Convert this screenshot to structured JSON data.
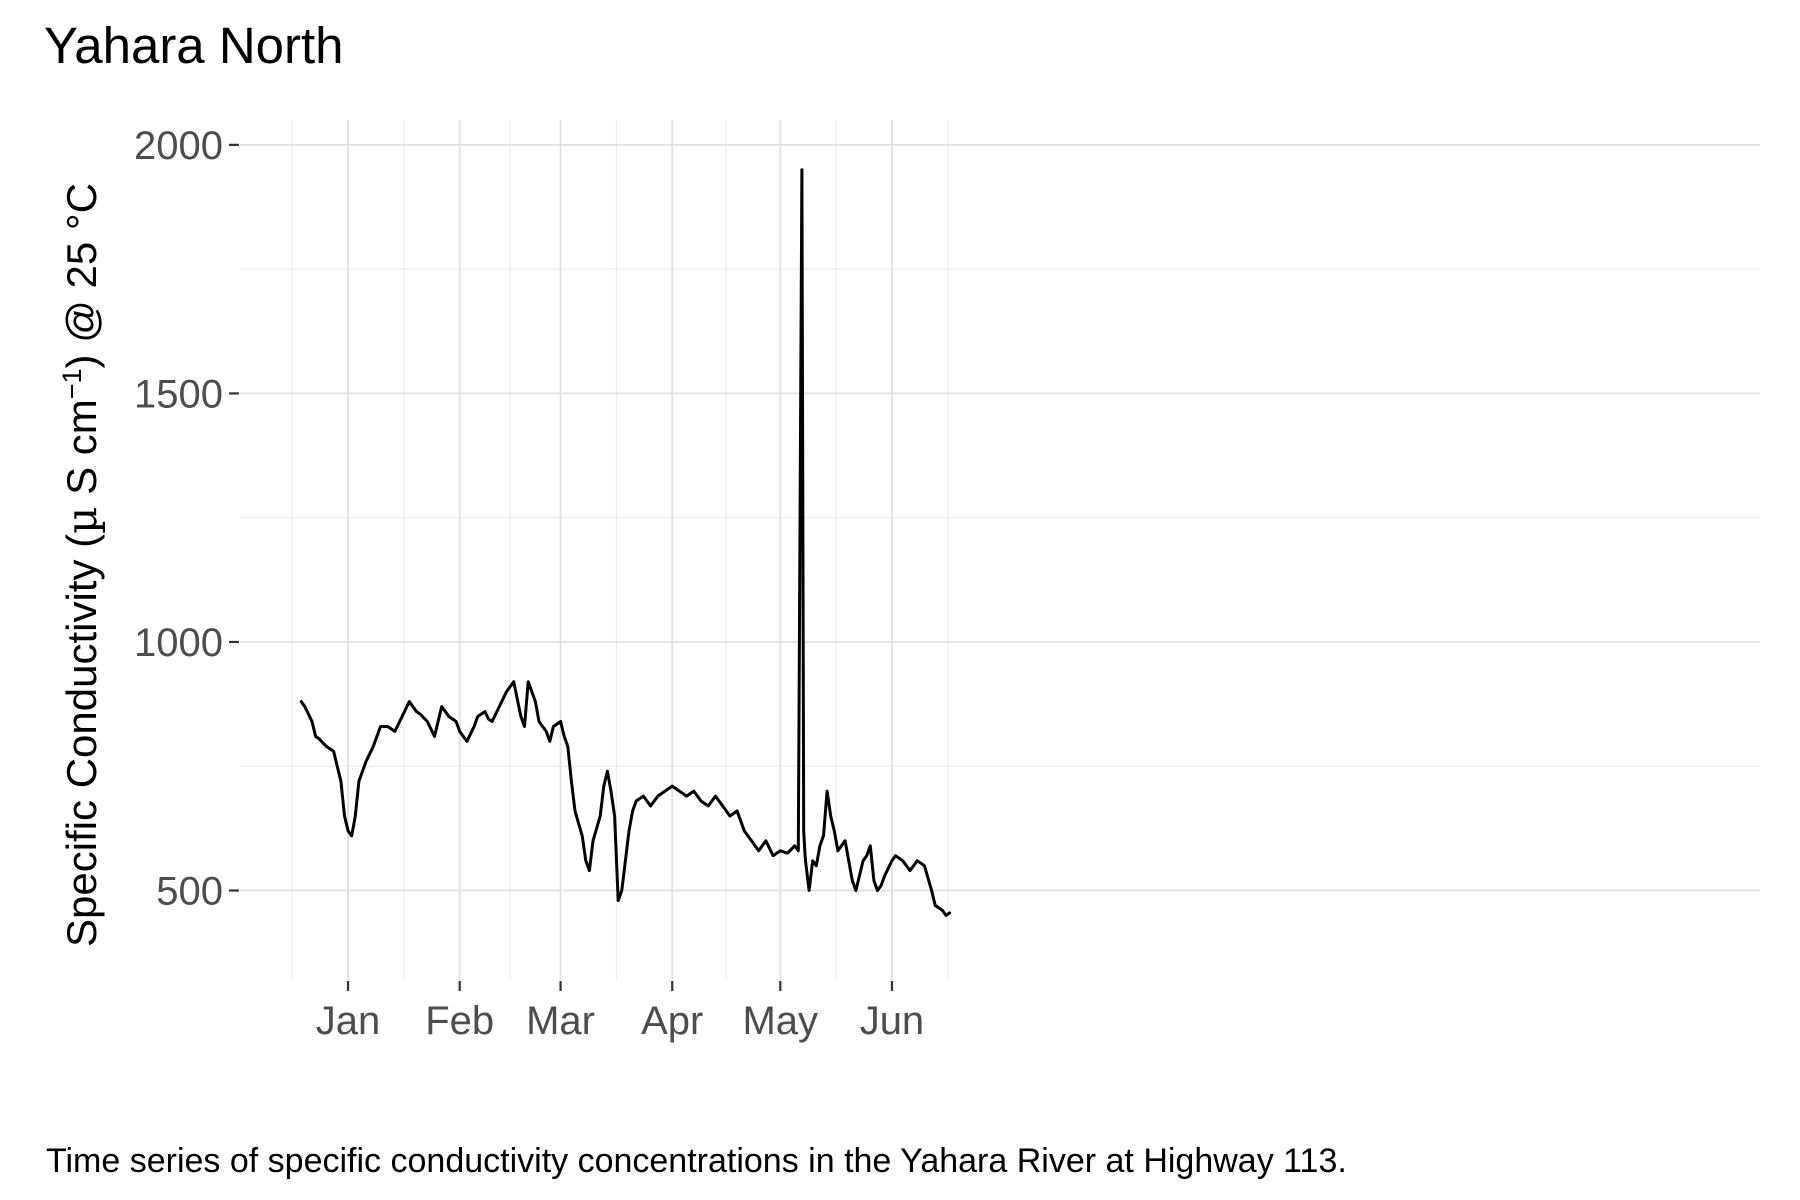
{
  "chart_data": {
    "type": "line",
    "title": "Yahara North",
    "ylabel_parts": {
      "pre": "Specific Conductivity (",
      "mu": "µ",
      "mid": " S cm",
      "sup": "−1",
      "post": ") @ 25 °C"
    },
    "xlabel": "",
    "caption": "Time series of specific conductivity concentrations in the Yahara River at Highway 113.",
    "ylim": [
      320,
      2050
    ],
    "y_ticks": [
      500,
      1000,
      1500,
      2000
    ],
    "y_tick_labels": [
      "500",
      "1000",
      "1500",
      "2000"
    ],
    "x_range_days": [
      -30,
      392
    ],
    "x_ticks": [
      {
        "day": 0,
        "label": "Jan"
      },
      {
        "day": 31,
        "label": "Feb"
      },
      {
        "day": 59,
        "label": "Mar"
      },
      {
        "day": 90,
        "label": "Apr"
      },
      {
        "day": 120,
        "label": "May"
      },
      {
        "day": 151,
        "label": "Jun"
      }
    ],
    "x_minor_ticks": [
      -15.5,
      15.5,
      45,
      74.5,
      105,
      135.5,
      166.5
    ],
    "grid": true,
    "series": [
      {
        "color": "#000000",
        "x": [
          -13,
          -12,
          -11,
          -10,
          -9,
          -8,
          -6,
          -4,
          -2,
          -1,
          0,
          1,
          2,
          3,
          5,
          7,
          9,
          11,
          13,
          15,
          17,
          18,
          19,
          20,
          22,
          24,
          26,
          28,
          30,
          31,
          33,
          35,
          36,
          38,
          39,
          40,
          42,
          44,
          46,
          48,
          49,
          50,
          52,
          53,
          54,
          55,
          56,
          57,
          59,
          60,
          61,
          62,
          63,
          65,
          66,
          67,
          68,
          70,
          71,
          72,
          73,
          74,
          75,
          76,
          77,
          78,
          79,
          80,
          82,
          84,
          86,
          88,
          90,
          92,
          94,
          96,
          98,
          100,
          102,
          104,
          106,
          108,
          110,
          112,
          114,
          116,
          118,
          120,
          122,
          124,
          125,
          126,
          126.5,
          126.8,
          127,
          128,
          129,
          130,
          131,
          132,
          133,
          134,
          135,
          136,
          138,
          139,
          140,
          141,
          142,
          143,
          144,
          145,
          146,
          147,
          148,
          149,
          150,
          151,
          152,
          154,
          156,
          158,
          160,
          162,
          163,
          165,
          166,
          167
        ],
        "y": [
          880,
          870,
          855,
          840,
          810,
          805,
          790,
          780,
          720,
          650,
          620,
          610,
          650,
          720,
          760,
          790,
          830,
          830,
          820,
          850,
          880,
          870,
          860,
          855,
          840,
          810,
          870,
          850,
          840,
          820,
          800,
          830,
          850,
          860,
          845,
          840,
          870,
          900,
          920,
          850,
          830,
          920,
          880,
          840,
          830,
          820,
          800,
          830,
          840,
          810,
          790,
          720,
          660,
          610,
          560,
          540,
          600,
          650,
          710,
          740,
          700,
          650,
          480,
          500,
          560,
          620,
          660,
          680,
          690,
          670,
          690,
          700,
          710,
          700,
          690,
          700,
          680,
          670,
          690,
          670,
          650,
          660,
          620,
          600,
          580,
          600,
          570,
          580,
          575,
          590,
          580,
          1950,
          620,
          580,
          560,
          500,
          560,
          550,
          590,
          610,
          700,
          650,
          620,
          580,
          600,
          560,
          520,
          500,
          530,
          560,
          570,
          590,
          520,
          500,
          510,
          530,
          545,
          560,
          570,
          560,
          540,
          560,
          550,
          500,
          470,
          460,
          450,
          455
        ]
      }
    ]
  }
}
